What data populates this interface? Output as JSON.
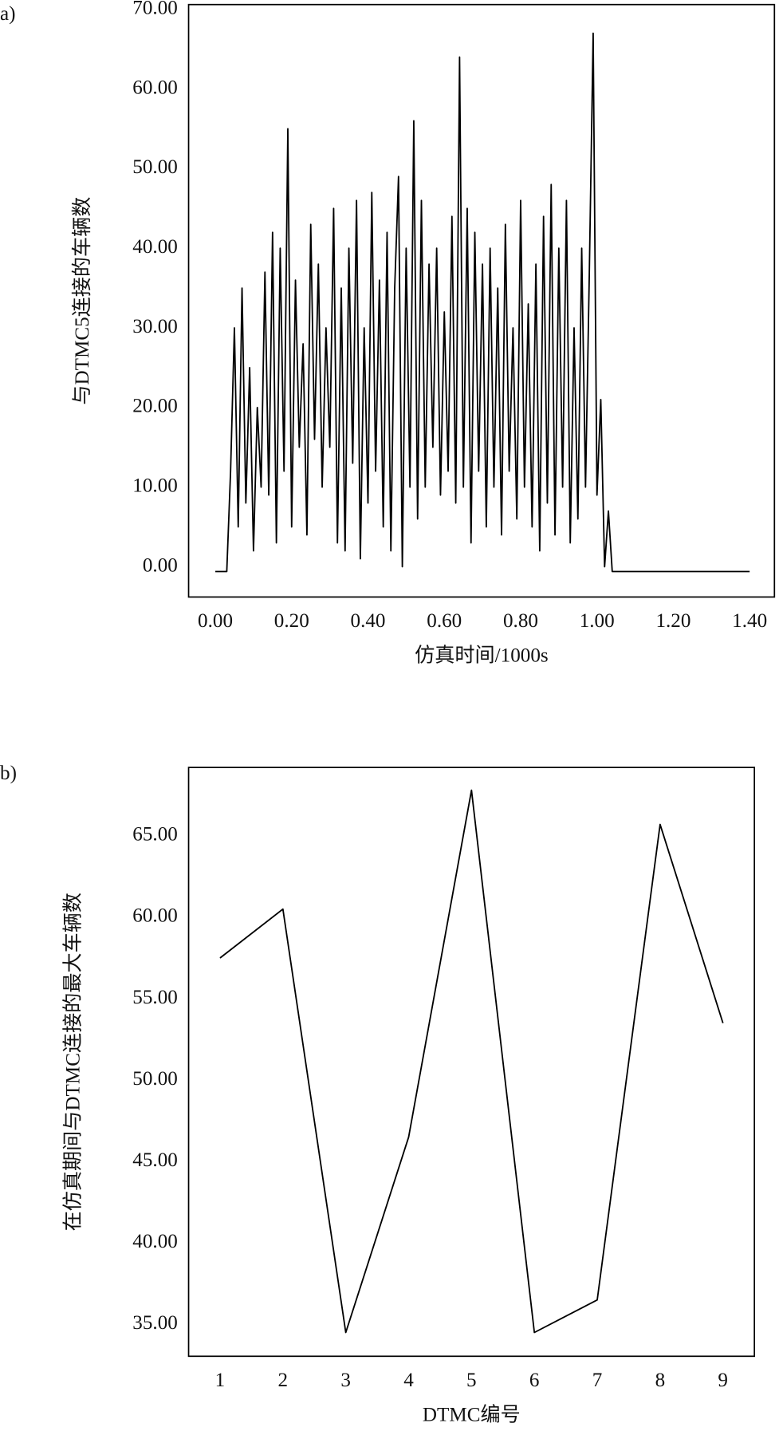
{
  "chart_data": [
    {
      "type": "line",
      "panel_label": "a)",
      "xlabel": "仿真时间/1000s",
      "ylabel": "与DTMC5连接的车辆数",
      "color": "#000000",
      "x": [
        0,
        0.03,
        0.04,
        0.05,
        0.06,
        0.07,
        0.08,
        0.09,
        0.1,
        0.11,
        0.12,
        0.13,
        0.14,
        0.15,
        0.16,
        0.17,
        0.18,
        0.19,
        0.2,
        0.21,
        0.22,
        0.23,
        0.24,
        0.25,
        0.26,
        0.27,
        0.28,
        0.29,
        0.3,
        0.31,
        0.32,
        0.33,
        0.34,
        0.35,
        0.36,
        0.37,
        0.38,
        0.39,
        0.4,
        0.41,
        0.42,
        0.43,
        0.44,
        0.45,
        0.46,
        0.47,
        0.48,
        0.49,
        0.5,
        0.51,
        0.52,
        0.53,
        0.54,
        0.55,
        0.56,
        0.57,
        0.58,
        0.59,
        0.6,
        0.61,
        0.62,
        0.63,
        0.64,
        0.65,
        0.66,
        0.67,
        0.68,
        0.69,
        0.7,
        0.71,
        0.72,
        0.73,
        0.74,
        0.75,
        0.76,
        0.77,
        0.78,
        0.79,
        0.8,
        0.81,
        0.82,
        0.83,
        0.84,
        0.85,
        0.86,
        0.87,
        0.88,
        0.89,
        0.9,
        0.91,
        0.92,
        0.93,
        0.94,
        0.95,
        0.96,
        0.97,
        0.98,
        0.99,
        1.0,
        1.01,
        1.02,
        1.03,
        1.04,
        1.4
      ],
      "values": [
        -0.6,
        -0.6,
        12,
        30,
        5,
        35,
        8,
        25,
        2,
        20,
        10,
        37,
        9,
        42,
        3,
        40,
        12,
        55,
        5,
        36,
        15,
        28,
        4,
        43,
        16,
        38,
        10,
        30,
        15,
        45,
        3,
        35,
        2,
        40,
        13,
        46,
        1,
        30,
        8,
        47,
        12,
        36,
        5,
        42,
        2,
        35,
        49,
        0,
        40,
        10,
        56,
        6,
        46,
        10,
        38,
        15,
        40,
        9,
        32,
        12,
        44,
        8,
        64,
        10,
        45,
        3,
        42,
        12,
        38,
        5,
        40,
        10,
        35,
        4,
        43,
        12,
        30,
        6,
        46,
        10,
        33,
        5,
        38,
        2,
        44,
        8,
        48,
        4,
        40,
        10,
        46,
        3,
        30,
        6,
        40,
        10,
        37,
        67,
        9,
        21,
        0,
        7,
        -0.6,
        -0.6
      ],
      "xlim": [
        -0.07,
        1.465
      ],
      "ylim": [
        -3.8,
        70.6
      ],
      "xticks": [
        {
          "value": 0,
          "label": "0.00"
        },
        {
          "value": 0.2,
          "label": "0.20"
        },
        {
          "value": 0.4,
          "label": "0.40"
        },
        {
          "value": 0.6,
          "label": "0.60"
        },
        {
          "value": 0.8,
          "label": "0.80"
        },
        {
          "value": 1,
          "label": "1.00"
        },
        {
          "value": 1.2,
          "label": "1.20"
        },
        {
          "value": 1.4,
          "label": "1.40"
        }
      ],
      "yticks": [
        {
          "value": 0,
          "label": "0.00"
        },
        {
          "value": 10,
          "label": "10.00"
        },
        {
          "value": 20,
          "label": "20.00"
        },
        {
          "value": 30,
          "label": "30.00"
        },
        {
          "value": 40,
          "label": "40.00"
        },
        {
          "value": 50,
          "label": "50.00"
        },
        {
          "value": 60,
          "label": "60.00"
        },
        {
          "value": 70,
          "label": "70.00"
        }
      ]
    },
    {
      "type": "line",
      "panel_label": "b)",
      "xlabel": "DTMC编号",
      "ylabel": "在仿真期间与DTMC连接的最大车辆数",
      "color": "#000000",
      "categories": [
        "1",
        "2",
        "3",
        "4",
        "5",
        "6",
        "7",
        "8",
        "9"
      ],
      "values": [
        57.5,
        60.5,
        34.5,
        46.5,
        67.8,
        34.5,
        36.5,
        65.7,
        53.5
      ],
      "ylim": [
        33.04,
        69.2
      ],
      "yticks": [
        {
          "value": 35,
          "label": "35.00"
        },
        {
          "value": 40,
          "label": "40.00"
        },
        {
          "value": 45,
          "label": "45.00"
        },
        {
          "value": 50,
          "label": "50.00"
        },
        {
          "value": 55,
          "label": "55.00"
        },
        {
          "value": 60,
          "label": "60.00"
        },
        {
          "value": 65,
          "label": "65.00"
        }
      ]
    }
  ]
}
